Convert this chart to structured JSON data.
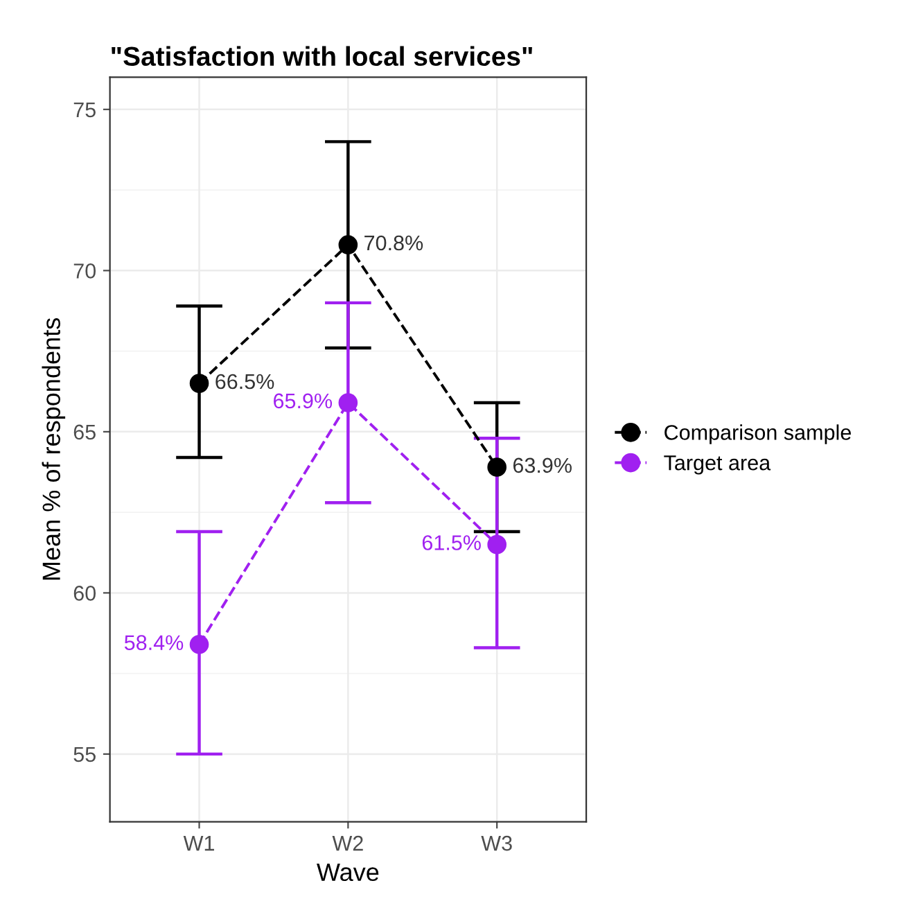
{
  "chart_data": {
    "type": "line",
    "title": "\"Satisfaction with local services\"",
    "xlabel": "Wave",
    "ylabel": "Mean % of respondents",
    "categories": [
      "W1",
      "W2",
      "W3"
    ],
    "series": [
      {
        "name": "Comparison sample",
        "color": "#000000",
        "values": [
          66.5,
          70.8,
          63.9
        ],
        "errors": [
          [
            64.2,
            68.9
          ],
          [
            67.6,
            74.0
          ],
          [
            61.9,
            65.9
          ]
        ],
        "value_labels": [
          "66.5%",
          "70.8%",
          "63.9%"
        ]
      },
      {
        "name": "Target area",
        "color": "#a020f0",
        "values": [
          58.4,
          65.9,
          61.5
        ],
        "errors": [
          [
            55.0,
            61.9
          ],
          [
            62.8,
            69.0
          ],
          [
            58.3,
            64.8
          ]
        ],
        "value_labels": [
          "58.4%",
          "65.9%",
          "61.5%"
        ]
      }
    ],
    "ylim": [
      52.9,
      76.0
    ],
    "yticks": [
      55,
      60,
      65,
      70,
      75
    ],
    "grid": true,
    "legend": "right",
    "marker": "circle",
    "line_style": "dashed"
  }
}
